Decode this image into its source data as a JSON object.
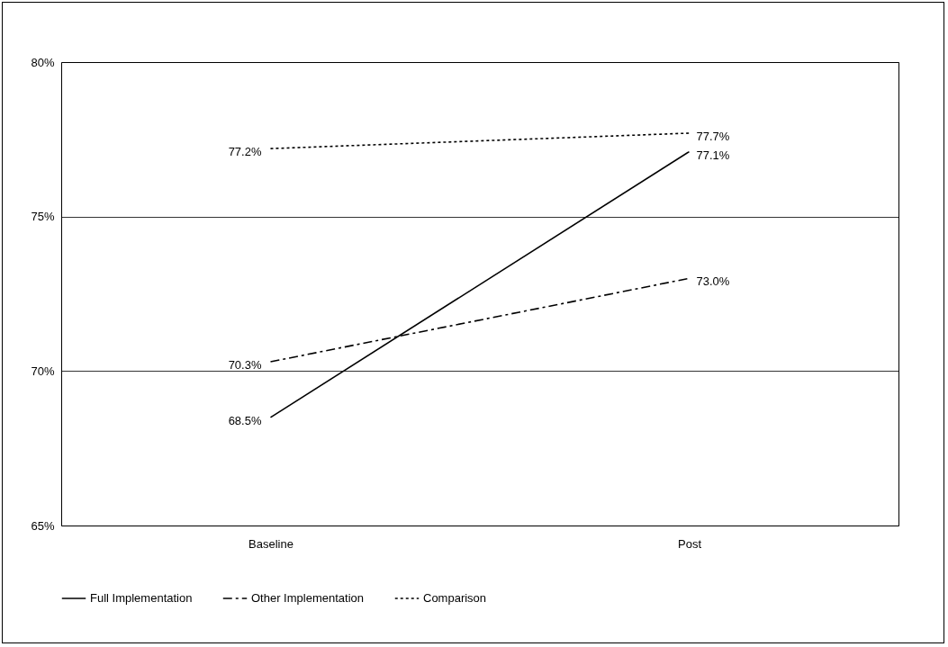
{
  "chart_data": {
    "type": "line",
    "categories": [
      "Baseline",
      "Post"
    ],
    "series": [
      {
        "name": "Full Implementation",
        "color": "#000000",
        "line_style": "solid",
        "values": [
          68.5,
          77.1
        ],
        "value_labels": [
          "68.5%",
          "77.1%"
        ]
      },
      {
        "name": "Other Implementation",
        "color": "#000000",
        "line_style": "dashed",
        "values": [
          70.3,
          73.0
        ],
        "value_labels": [
          "70.3%",
          "73.0%"
        ]
      },
      {
        "name": "Comparison",
        "color": "#000000",
        "line_style": "dotted",
        "values": [
          77.2,
          77.7
        ],
        "value_labels": [
          "77.2%",
          "77.7%"
        ]
      }
    ],
    "ylim": [
      65,
      80
    ],
    "yticks": [
      {
        "value": 65,
        "label": "65%"
      },
      {
        "value": 70,
        "label": "70%"
      },
      {
        "value": 75,
        "label": "75%"
      },
      {
        "value": 80,
        "label": "80%"
      }
    ],
    "grid": "y",
    "legend": "bottom",
    "marker": "none"
  }
}
